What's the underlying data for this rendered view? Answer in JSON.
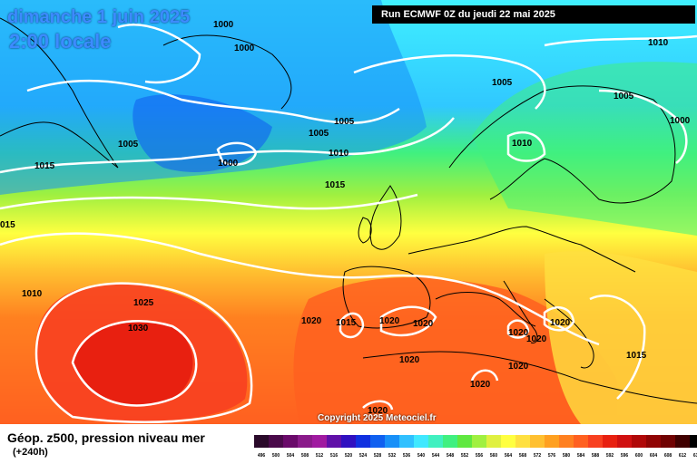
{
  "header": {
    "date_label": "dimanche 1 juin 2025",
    "time_label": "2:00 locale",
    "run_label": "Run ECMWF 0Z du jeudi 22 mai 2025"
  },
  "footer": {
    "field_title": "Géop. z500, pression niveau mer",
    "lead_time": "(+240h)",
    "copyright": "Copyright 2025 Meteociel.fr"
  },
  "scale": [
    {
      "label": "496",
      "color": "#2a0a2a"
    },
    {
      "label": "500",
      "color": "#4a0a4a"
    },
    {
      "label": "504",
      "color": "#6a0a6a"
    },
    {
      "label": "508",
      "color": "#8a1a8a"
    },
    {
      "label": "512",
      "color": "#a01aa0"
    },
    {
      "label": "516",
      "color": "#6010a8"
    },
    {
      "label": "520",
      "color": "#3010c0"
    },
    {
      "label": "524",
      "color": "#1030e0"
    },
    {
      "label": "528",
      "color": "#1060f0"
    },
    {
      "label": "532",
      "color": "#1890f8"
    },
    {
      "label": "536",
      "color": "#30c0ff"
    },
    {
      "label": "540",
      "color": "#40e8ff"
    },
    {
      "label": "544",
      "color": "#40f0c0"
    },
    {
      "label": "548",
      "color": "#40f080"
    },
    {
      "label": "552",
      "color": "#60e840"
    },
    {
      "label": "556",
      "color": "#a0f040"
    },
    {
      "label": "560",
      "color": "#e0f040"
    },
    {
      "label": "564",
      "color": "#ffff40"
    },
    {
      "label": "568",
      "color": "#ffe040"
    },
    {
      "label": "572",
      "color": "#ffc030"
    },
    {
      "label": "576",
      "color": "#ffa020"
    },
    {
      "label": "580",
      "color": "#ff8020"
    },
    {
      "label": "584",
      "color": "#ff6020"
    },
    {
      "label": "588",
      "color": "#f84020"
    },
    {
      "label": "592",
      "color": "#e82010"
    },
    {
      "label": "596",
      "color": "#d01010"
    },
    {
      "label": "600",
      "color": "#b00808"
    },
    {
      "label": "604",
      "color": "#900404"
    },
    {
      "label": "608",
      "color": "#700202"
    },
    {
      "label": "612",
      "color": "#400000"
    },
    {
      "label": "616",
      "color": "#000000"
    }
  ],
  "isobar_labels": [
    {
      "text": "1000"
    },
    {
      "text": "1000"
    },
    {
      "text": "1005"
    },
    {
      "text": "1005"
    },
    {
      "text": "1000"
    },
    {
      "text": "1005"
    },
    {
      "text": "1010"
    },
    {
      "text": "1015"
    },
    {
      "text": "1015"
    },
    {
      "text": "1005"
    },
    {
      "text": "1010"
    },
    {
      "text": "1005"
    },
    {
      "text": "1000"
    },
    {
      "text": "1010"
    },
    {
      "text": "015"
    },
    {
      "text": "1010"
    },
    {
      "text": "1025"
    },
    {
      "text": "1030"
    },
    {
      "text": "1020"
    },
    {
      "text": "1015"
    },
    {
      "text": "1020"
    },
    {
      "text": "1020"
    },
    {
      "text": "1020"
    },
    {
      "text": "1020"
    },
    {
      "text": "1020"
    },
    {
      "text": "1020"
    },
    {
      "text": "1020"
    },
    {
      "text": "1020"
    },
    {
      "text": "1015"
    },
    {
      "text": "1020"
    }
  ],
  "colors": {
    "isobar": "#ffffff",
    "coast": "#000000"
  }
}
